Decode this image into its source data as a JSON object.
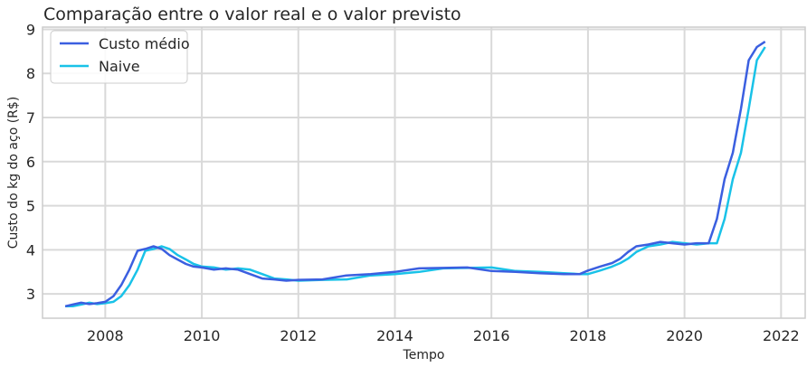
{
  "chart_data": {
    "type": "line",
    "title": "Comparação entre o valor real e o valor previsto",
    "xlabel": "Tempo",
    "ylabel": "Custo do kg do aço (R$)",
    "xlim": [
      2006.7,
      2022.5
    ],
    "ylim": [
      2.45,
      9.05
    ],
    "xticks": [
      2008,
      2010,
      2012,
      2014,
      2016,
      2018,
      2020,
      2022
    ],
    "yticks": [
      3,
      4,
      5,
      6,
      7,
      8,
      9
    ],
    "grid": true,
    "legend_position": "top-left",
    "series": [
      {
        "name": "Custo médio",
        "color": "#3b5fe0",
        "x": [
          2007.17,
          2007.33,
          2007.5,
          2007.67,
          2007.83,
          2008.0,
          2008.17,
          2008.33,
          2008.5,
          2008.67,
          2008.83,
          2009.0,
          2009.17,
          2009.33,
          2009.5,
          2009.67,
          2009.83,
          2010.0,
          2010.25,
          2010.5,
          2010.75,
          2011.0,
          2011.25,
          2011.5,
          2011.75,
          2012.0,
          2012.5,
          2013.0,
          2013.5,
          2014.0,
          2014.5,
          2015.0,
          2015.5,
          2016.0,
          2016.5,
          2017.0,
          2017.5,
          2017.83,
          2018.0,
          2018.25,
          2018.5,
          2018.67,
          2018.83,
          2019.0,
          2019.25,
          2019.5,
          2019.75,
          2020.0,
          2020.25,
          2020.5,
          2020.67,
          2020.83,
          2021.0,
          2021.17,
          2021.33,
          2021.5,
          2021.67
        ],
        "y": [
          2.72,
          2.76,
          2.8,
          2.77,
          2.79,
          2.82,
          2.95,
          3.2,
          3.55,
          3.98,
          4.02,
          4.08,
          4.02,
          3.88,
          3.78,
          3.68,
          3.62,
          3.6,
          3.55,
          3.58,
          3.55,
          3.45,
          3.35,
          3.33,
          3.3,
          3.32,
          3.33,
          3.42,
          3.45,
          3.5,
          3.58,
          3.59,
          3.6,
          3.52,
          3.5,
          3.47,
          3.45,
          3.45,
          3.53,
          3.62,
          3.7,
          3.8,
          3.95,
          4.08,
          4.12,
          4.18,
          4.15,
          4.12,
          4.15,
          4.15,
          4.7,
          5.6,
          6.2,
          7.2,
          8.3,
          8.6,
          8.72
        ]
      },
      {
        "name": "Naive",
        "color": "#19c2e8",
        "x": [
          2007.17,
          2007.33,
          2007.5,
          2007.67,
          2007.83,
          2008.0,
          2008.17,
          2008.33,
          2008.5,
          2008.67,
          2008.83,
          2009.0,
          2009.17,
          2009.33,
          2009.5,
          2009.67,
          2009.83,
          2010.0,
          2010.25,
          2010.5,
          2010.75,
          2011.0,
          2011.25,
          2011.5,
          2011.75,
          2012.0,
          2012.5,
          2013.0,
          2013.5,
          2014.0,
          2014.5,
          2015.0,
          2015.5,
          2016.0,
          2016.5,
          2017.0,
          2017.5,
          2017.83,
          2018.0,
          2018.25,
          2018.5,
          2018.67,
          2018.83,
          2019.0,
          2019.25,
          2019.5,
          2019.75,
          2020.0,
          2020.25,
          2020.5,
          2020.67,
          2020.83,
          2021.0,
          2021.17,
          2021.33,
          2021.5,
          2021.67
        ],
        "y": [
          2.72,
          2.72,
          2.76,
          2.8,
          2.77,
          2.79,
          2.82,
          2.95,
          3.2,
          3.55,
          3.98,
          4.02,
          4.08,
          4.02,
          3.88,
          3.78,
          3.68,
          3.62,
          3.6,
          3.55,
          3.58,
          3.55,
          3.45,
          3.35,
          3.33,
          3.3,
          3.32,
          3.33,
          3.42,
          3.45,
          3.5,
          3.58,
          3.59,
          3.6,
          3.52,
          3.5,
          3.47,
          3.45,
          3.45,
          3.53,
          3.62,
          3.7,
          3.8,
          3.95,
          4.08,
          4.12,
          4.18,
          4.15,
          4.12,
          4.15,
          4.15,
          4.7,
          5.6,
          6.2,
          7.2,
          8.3,
          8.6
        ]
      }
    ]
  }
}
